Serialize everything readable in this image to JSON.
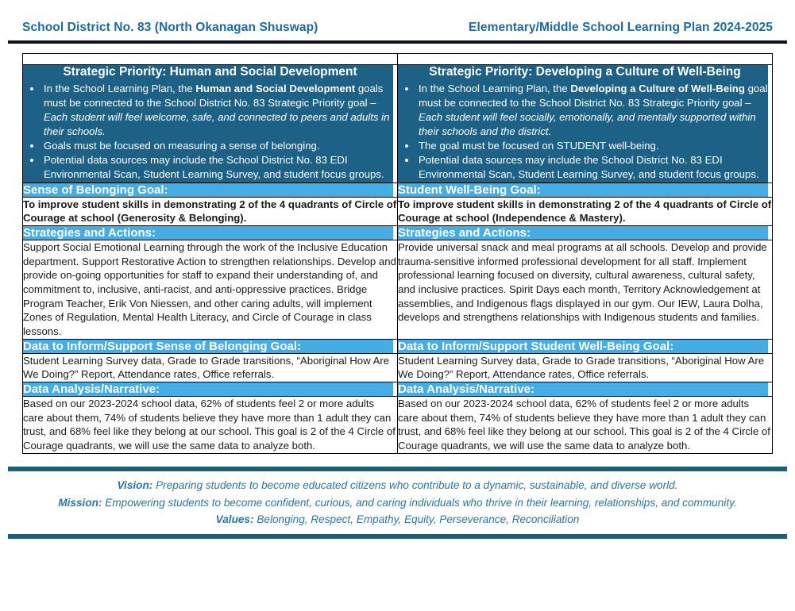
{
  "header": {
    "left": "School District No. 83 (North Okanagan Shuswap)",
    "right": "Elementary/Middle School Learning Plan 2024-2025"
  },
  "columns": [
    {
      "priority_title": "Strategic Priority: Human and Social Development",
      "bullets": [
        {
          "t1": "In the School Learning Plan, the ",
          "b": "Human and Social Development",
          "t2": " goals must be connected to the School District No. 83 Strategic Priority goal – ",
          "i": "Each student will feel welcome, safe, and connected to peers and adults in their schools."
        },
        {
          "t1": "Goals must be focused on measuring a sense of belonging."
        },
        {
          "t1": "Potential data sources may include the School District No. 83 EDI Environmental Scan, Student Learning Survey, and student focus groups."
        }
      ],
      "goal_header": "Sense of Belonging Goal:",
      "goal_text": "To improve student skills in demonstrating 2 of the 4 quadrants of Circle of Courage at school (Generosity & Belonging).",
      "strategies_header": "Strategies and Actions:",
      "strategies_text": "Support Social Emotional Learning through the work of the Inclusive Education department. Support Restorative Action to strengthen relationships. Develop and provide on-going opportunities for staff to expand their understanding of, and commitment to, inclusive, anti-racist, and anti-oppressive practices. Bridge Program Teacher, Erik Von Niessen, and other caring adults, will implement Zones of Regulation, Mental Health Literacy, and Circle of Courage in class lessons.",
      "data_header": "Data to Inform/Support Sense of Belonging Goal:",
      "data_text": "Student Learning Survey data, Grade to Grade transitions, “Aboriginal How Are We Doing?” Report, Attendance rates, Office referrals.",
      "analysis_header": "Data Analysis/Narrative:",
      "analysis_text": "Based on our 2023-2024 school data, 62% of students feel 2 or more adults care about them, 74% of students believe they have more than 1 adult they can trust, and 68% feel like they belong at our school. This goal is 2 of the 4 Circle of Courage quadrants, we will use the same data to analyze both."
    },
    {
      "priority_title": "Strategic Priority: Developing a Culture of Well-Being",
      "bullets": [
        {
          "t1": "In the School Learning Plan, the ",
          "b": "Developing a Culture of Well-Being",
          "t2": " goal must be connected to the School District No. 83 Strategic Priority goal – ",
          "i": "Each student will feel socially, emotionally, and mentally supported within their schools and the district."
        },
        {
          "t1": "The goal must be focused on STUDENT well-being."
        },
        {
          "t1": "Potential data sources may include the School District No. 83 EDI Environmental Scan, Student Learning Survey, and student focus groups."
        }
      ],
      "goal_header": "Student Well-Being Goal:",
      "goal_text": "To improve student skills in demonstrating 2 of the 4 quadrants of Circle of Courage at school (Independence & Mastery).",
      "strategies_header": "Strategies and Actions:",
      "strategies_text": "Provide universal snack and meal programs at all schools. Develop and provide trauma-sensitive informed professional development for all staff. Implement professional learning focused on diversity, cultural awareness, cultural safety, and inclusive practices. Spirit Days each month, Territory Acknowledgement at assemblies, and Indigenous flags displayed in our gym. Our IEW, Laura Dolha, develops and strengthens relationships with Indigenous students and families.",
      "data_header": "Data to Inform/Support Student Well-Being Goal:",
      "data_text": "Student Learning Survey data, Grade to Grade transitions, “Aboriginal How Are We Doing?” Report, Attendance rates, Office referrals.",
      "analysis_header": "Data Analysis/Narrative:",
      "analysis_text": "Based on our 2023-2024 school data, 62% of students feel 2 or more adults care about them, 74% of students believe they have more than 1 adult they can trust, and 68% feel like they belong at our school. This goal is 2 of the 4 Circle of Courage quadrants, we will use the same data to analyze both."
    }
  ],
  "footer": {
    "vision_label": "Vision:",
    "vision_text": "Preparing students to become educated citizens who contribute to a dynamic, sustainable, and diverse world.",
    "mission_label": "Mission:",
    "mission_text": "Empowering students to become confident, curious, and caring individuals who thrive in their learning, relationships, and community.",
    "values_label": "Values:",
    "values_text": "Belonging, Respect, Empathy, Equity, Perseverance, Reconciliation"
  },
  "colors": {
    "dark_blue_cell": "#1e6187",
    "light_blue_band": "#45ade3",
    "header_text_blue": "#1c6a9e",
    "footer_text_blue": "#2e75a8",
    "footer_rule": "#1a5f7c",
    "header_rule": "#0b1420"
  }
}
